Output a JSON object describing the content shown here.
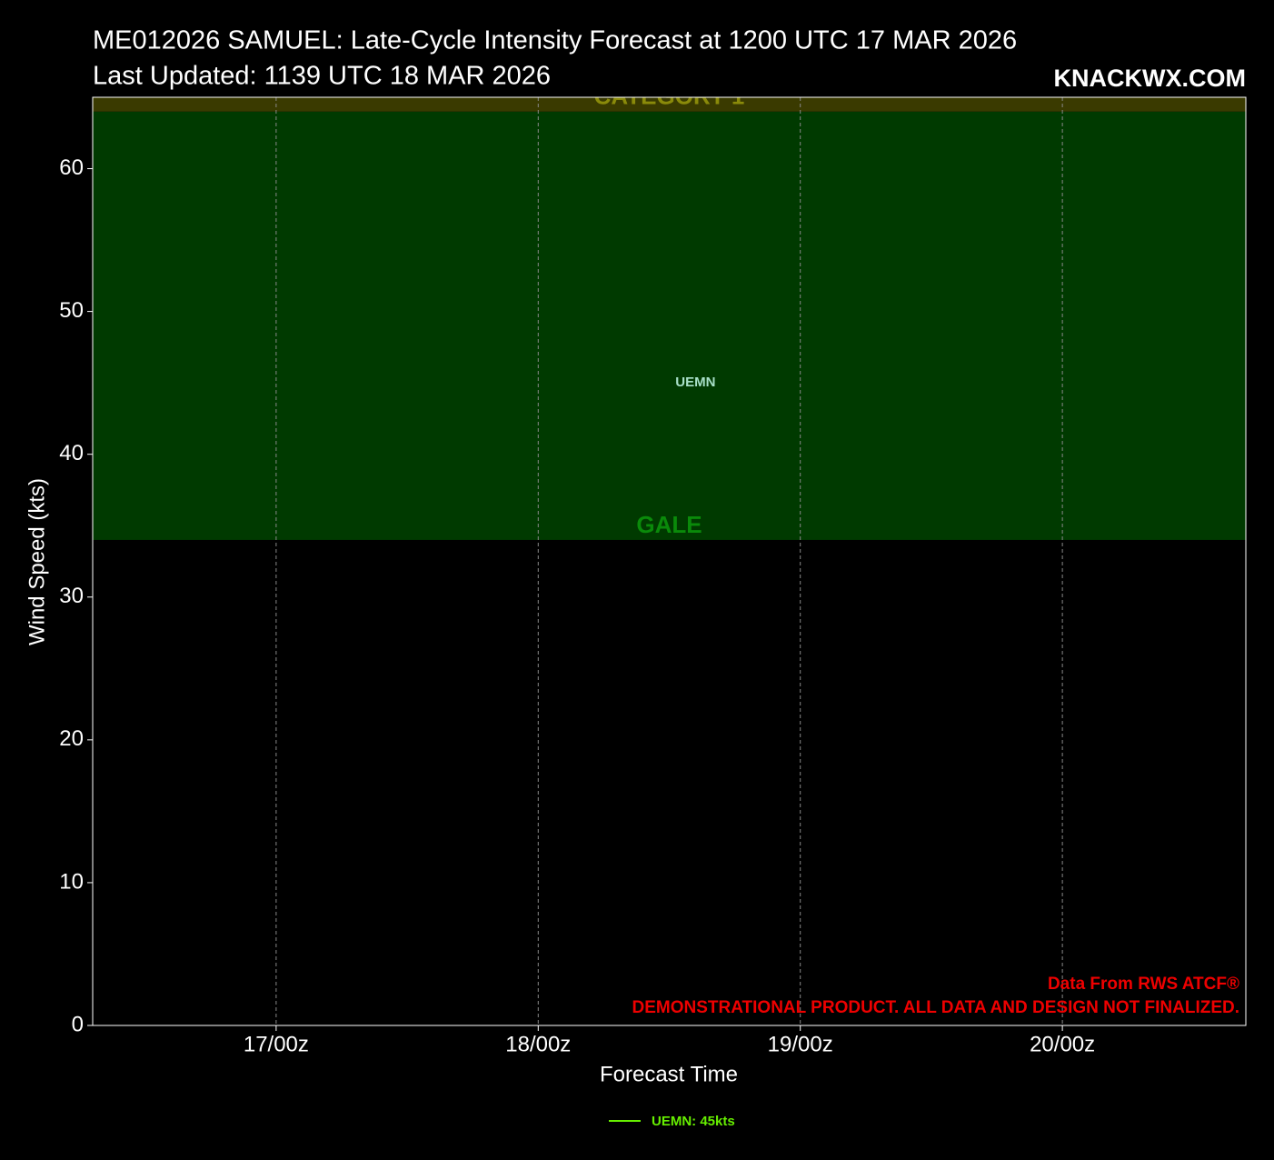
{
  "chart_data": {
    "type": "line",
    "title": "ME012026 SAMUEL: Late-Cycle Intensity Forecast at 1200 UTC 17 MAR 2026",
    "subtitle": "Last Updated: 1139 UTC 18 MAR 2026",
    "brand": "KNACKWX.COM",
    "xlabel": "Forecast Time",
    "ylabel": "Wind Speed (kts)",
    "credits": [
      "Data From RWS ATCF®",
      "DEMONSTRATIONAL PRODUCT. ALL DATA AND DESIGN NOT FINALIZED."
    ],
    "xlim": [
      16.3,
      20.7
    ],
    "xticks": [
      {
        "value": 17,
        "label": "17/00z"
      },
      {
        "value": 18,
        "label": "18/00z"
      },
      {
        "value": 19,
        "label": "19/00z"
      },
      {
        "value": 20,
        "label": "20/00z"
      }
    ],
    "ylim": [
      0,
      65
    ],
    "yticks": [
      0,
      10,
      20,
      30,
      40,
      50,
      60
    ],
    "grid": true,
    "bands": [
      {
        "label": "GALE",
        "from": 34,
        "color": "#003a00",
        "label_color": "#0a8a0a"
      },
      {
        "label": "CATEGORY 1",
        "from": 64,
        "color": "#3a3a00",
        "label_color": "#8a8a0a"
      }
    ],
    "series": [
      {
        "name": "UEMN",
        "legend_label": "UEMN: 45kts",
        "color": "#66ee00",
        "label_color": "#a8e0c8",
        "x": [
          18.6
        ],
        "values": [
          45
        ]
      }
    ]
  }
}
